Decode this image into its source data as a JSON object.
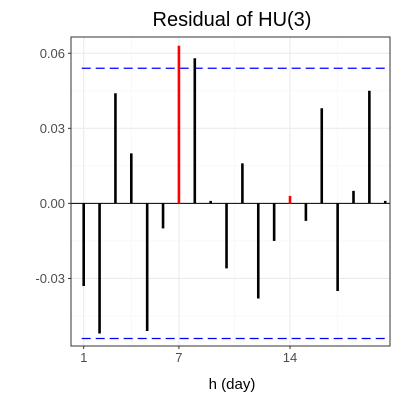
{
  "chart_data": {
    "type": "bar",
    "title": "Residual of HU(3)",
    "xlabel": "h (day)",
    "ylabel": "",
    "x": [
      1,
      2,
      3,
      4,
      5,
      6,
      7,
      8,
      9,
      10,
      11,
      12,
      13,
      14,
      15,
      16,
      17,
      18,
      19,
      20
    ],
    "values": [
      -0.033,
      -0.052,
      0.044,
      0.02,
      -0.051,
      -0.01,
      0.063,
      0.058,
      0.001,
      -0.026,
      0.016,
      -0.038,
      -0.015,
      0.003,
      -0.007,
      0.038,
      -0.035,
      0.005,
      0.045,
      0.001
    ],
    "highlighted": [
      7,
      14
    ],
    "confidence_band": 0.054,
    "xlim": [
      0.2,
      20.3
    ],
    "ylim": [
      -0.057,
      0.0665
    ],
    "x_ticks": [
      1,
      7,
      14
    ],
    "y_ticks": [
      -0.03,
      0.0,
      0.03,
      0.06
    ],
    "y_tick_labels": [
      "-0.03",
      "0.00",
      "0.03",
      "0.06"
    ],
    "grid": true,
    "legend": "none",
    "colors": {
      "bar": "#000000",
      "highlight": "#ff0000",
      "band": "#0000ff",
      "grid_major": "#ebebeb",
      "grid_minor": "#f5f5f5",
      "panel_border": "#333333",
      "zero_line": "#000000"
    }
  }
}
